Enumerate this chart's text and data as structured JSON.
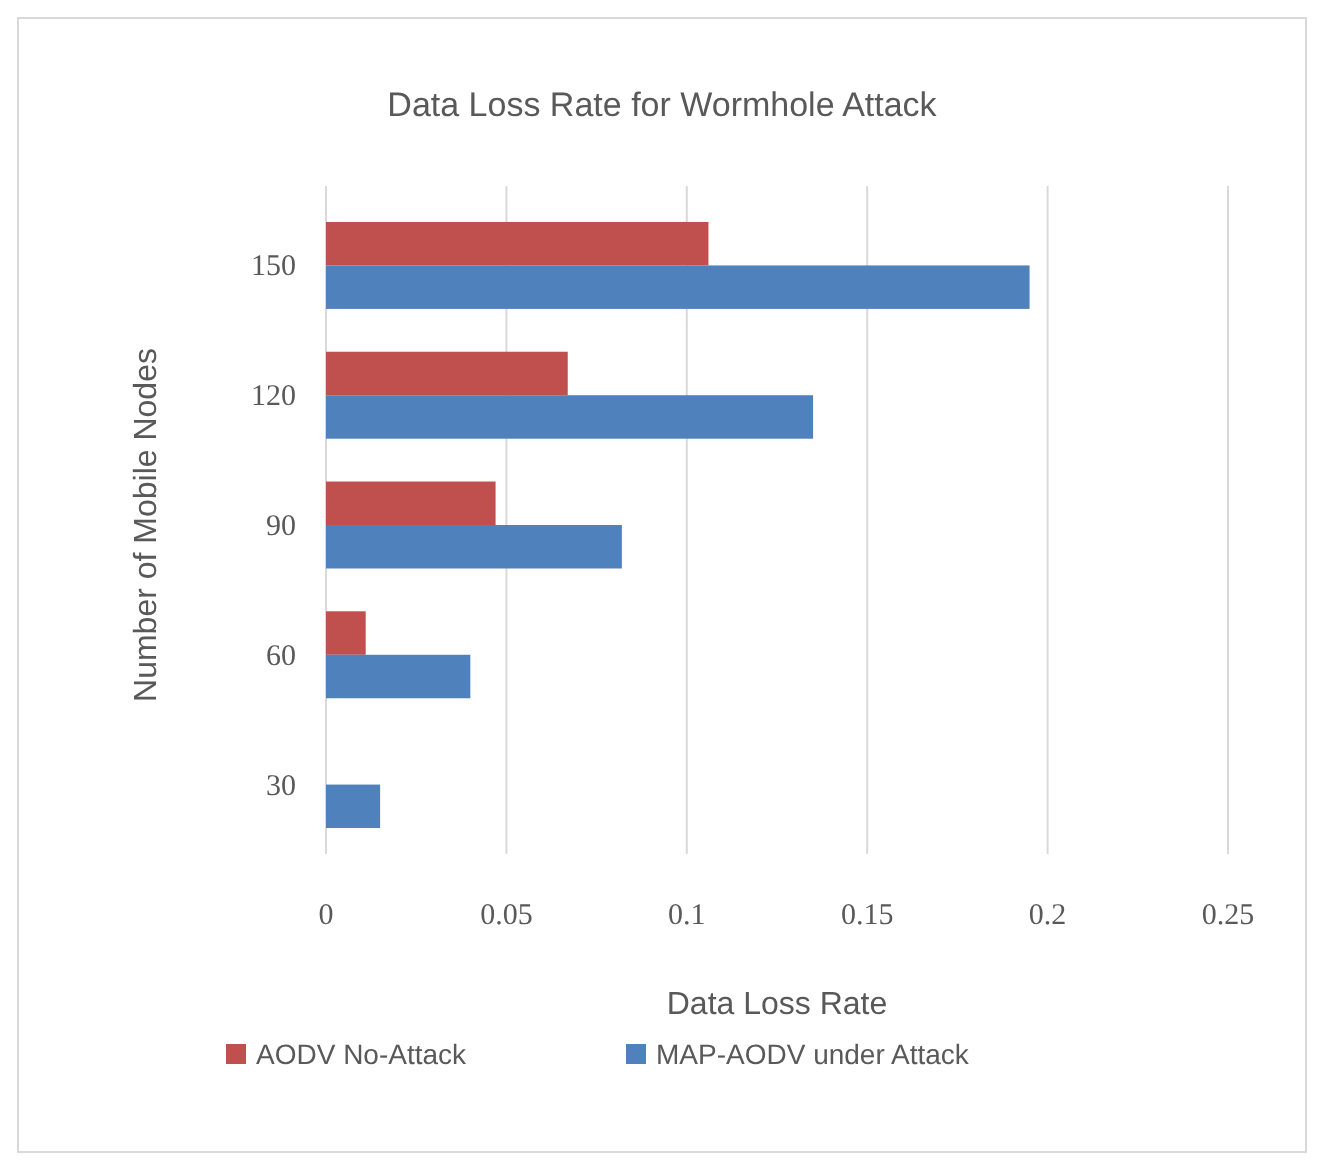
{
  "chart_data": {
    "type": "bar",
    "orientation": "horizontal",
    "title": "Data Loss Rate for Wormhole Attack",
    "xlabel": "Data Loss Rate",
    "ylabel": "Number of Mobile Nodes",
    "categories": [
      "150",
      "120",
      "90",
      "60",
      "30"
    ],
    "series": [
      {
        "name": "AODV No-Attack",
        "color": "#c0504d",
        "values": [
          0.106,
          0.067,
          0.047,
          0.011,
          0
        ]
      },
      {
        "name": "MAP-AODV under Attack",
        "color": "#4f81bd",
        "values": [
          0.195,
          0.135,
          0.082,
          0.04,
          0.015
        ]
      }
    ],
    "xlim": [
      0,
      0.25
    ],
    "xticks": [
      0,
      0.05,
      0.1,
      0.15,
      0.2,
      0.25
    ],
    "grid": "x",
    "legend": "bottom"
  }
}
